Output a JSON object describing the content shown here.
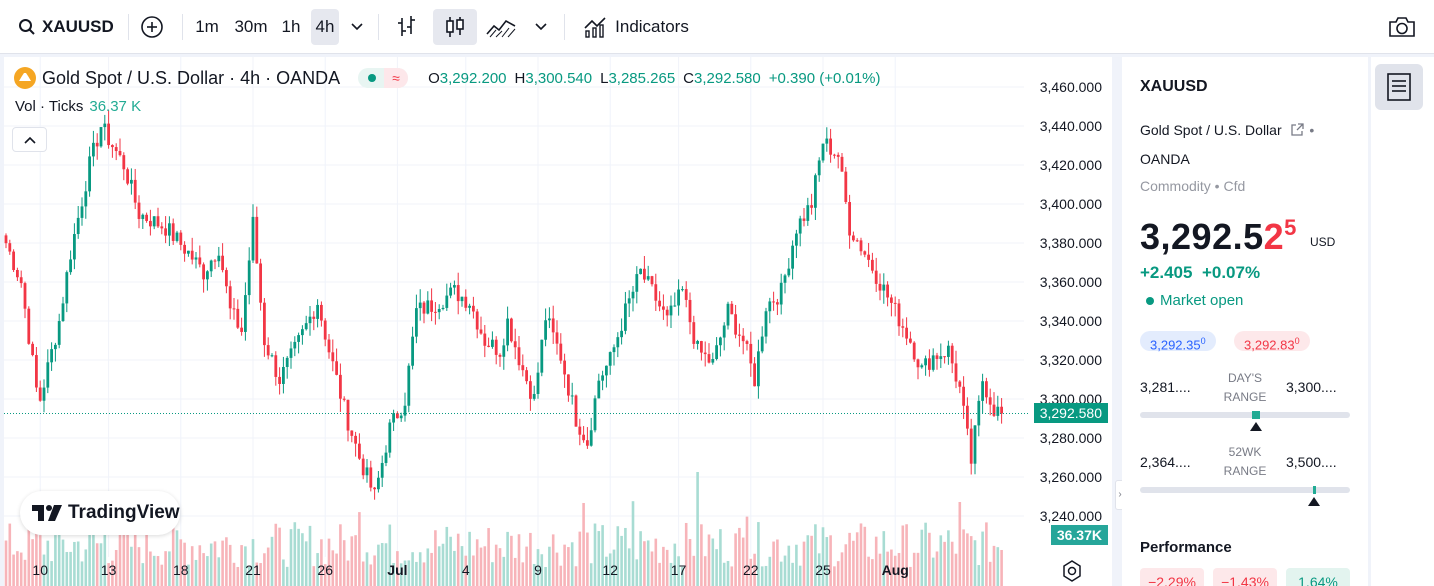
{
  "toolbar": {
    "symbol": "XAUUSD",
    "intervals": [
      "1m",
      "30m",
      "1h",
      "4h"
    ],
    "active_interval": "4h",
    "indicators_label": "Indicators"
  },
  "legend": {
    "title": "Gold Spot / U.S. Dollar · 4h · OANDA",
    "o_label": "O",
    "o": "3,292.200",
    "h_label": "H",
    "h": "3,300.540",
    "l_label": "L",
    "l": "3,285.265",
    "c_label": "C",
    "c": "3,292.580",
    "change": "+0.390 (+0.01%)",
    "vol_label": "Vol · Ticks",
    "vol_value": "36.37 K"
  },
  "price_axis": {
    "ticks": [
      "3,460.000",
      "3,440.000",
      "3,420.000",
      "3,400.000",
      "3,380.000",
      "3,360.000",
      "3,340.000",
      "3,320.000",
      "3,300.000",
      "3,280.000",
      "3,260.000",
      "3,240.000"
    ],
    "last_price_tag": "3,292.580",
    "volume_tag": "36.37K"
  },
  "time_axis": {
    "labels": [
      "10",
      "13",
      "18",
      "21",
      "26",
      "Jul",
      "4",
      "9",
      "12",
      "17",
      "22",
      "25",
      "Aug"
    ]
  },
  "watermark": "TradingView",
  "colors": {
    "up": "#089981",
    "down": "#f23645",
    "accent": "#2962ff"
  },
  "side": {
    "symbol": "XAUUSD",
    "name": "Gold Spot / U.S. Dollar",
    "exchange": "OANDA",
    "category": "Commodity",
    "type": "Cfd",
    "price_main": "3,292.5",
    "price_tail": "2",
    "price_sup": "5",
    "currency": "USD",
    "change_abs": "+2.405",
    "change_pct": "+0.07%",
    "market_status": "Market open",
    "bid": "3,292.35",
    "bid_sup": "0",
    "ask": "3,292.83",
    "ask_sup": "0",
    "day_low": "3,281....",
    "day_high": "3,300....",
    "day_label_1": "DAY'S",
    "day_label_2": "RANGE",
    "day_position_pct": 55,
    "wk_low": "2,364....",
    "wk_high": "3,500....",
    "wk_label_1": "52WK",
    "wk_label_2": "RANGE",
    "wk_position_pct": 83,
    "performance_title": "Performance",
    "performance": [
      "−2.29%",
      "−1.43%",
      "1.64%"
    ]
  },
  "chart_data": {
    "type": "candlestick",
    "title": "Gold Spot / U.S. Dollar · 4h · OANDA",
    "ylim": [
      3230,
      3470
    ],
    "y_ticks": [
      3460,
      3440,
      3420,
      3400,
      3380,
      3360,
      3340,
      3320,
      3300,
      3280,
      3260,
      3240
    ],
    "x_labels": [
      "10",
      "13",
      "18",
      "21",
      "26",
      "Jul",
      "4",
      "9",
      "12",
      "17",
      "22",
      "25",
      "Aug"
    ],
    "x_label_index": [
      9,
      27,
      46,
      65,
      84,
      103,
      121,
      140,
      159,
      177,
      196,
      215,
      234
    ],
    "last_price": 3292.58,
    "anchors": [
      [
        0,
        3380
      ],
      [
        4,
        3360
      ],
      [
        8,
        3305
      ],
      [
        9,
        3300
      ],
      [
        14,
        3340
      ],
      [
        17,
        3375
      ],
      [
        22,
        3420
      ],
      [
        25,
        3440
      ],
      [
        28,
        3430
      ],
      [
        31,
        3420
      ],
      [
        35,
        3395
      ],
      [
        42,
        3388
      ],
      [
        48,
        3375
      ],
      [
        52,
        3365
      ],
      [
        56,
        3378
      ],
      [
        59,
        3345
      ],
      [
        62,
        3335
      ],
      [
        65,
        3390
      ],
      [
        68,
        3330
      ],
      [
        72,
        3310
      ],
      [
        76,
        3325
      ],
      [
        82,
        3350
      ],
      [
        85,
        3325
      ],
      [
        89,
        3295
      ],
      [
        93,
        3270
      ],
      [
        97,
        3250
      ],
      [
        101,
        3285
      ],
      [
        105,
        3300
      ],
      [
        108,
        3345
      ],
      [
        112,
        3348
      ],
      [
        118,
        3355
      ],
      [
        122,
        3350
      ],
      [
        126,
        3330
      ],
      [
        130,
        3325
      ],
      [
        132,
        3340
      ],
      [
        136,
        3315
      ],
      [
        139,
        3300
      ],
      [
        142,
        3342
      ],
      [
        146,
        3322
      ],
      [
        150,
        3290
      ],
      [
        153,
        3278
      ],
      [
        156,
        3310
      ],
      [
        159,
        3320
      ],
      [
        163,
        3345
      ],
      [
        167,
        3365
      ],
      [
        170,
        3355
      ],
      [
        174,
        3340
      ],
      [
        178,
        3355
      ],
      [
        182,
        3325
      ],
      [
        186,
        3318
      ],
      [
        190,
        3345
      ],
      [
        194,
        3330
      ],
      [
        197,
        3310
      ],
      [
        200,
        3348
      ],
      [
        204,
        3355
      ],
      [
        208,
        3388
      ],
      [
        212,
        3400
      ],
      [
        215,
        3432
      ],
      [
        219,
        3425
      ],
      [
        222,
        3388
      ],
      [
        226,
        3375
      ],
      [
        230,
        3360
      ],
      [
        234,
        3345
      ],
      [
        238,
        3330
      ],
      [
        241,
        3315
      ],
      [
        244,
        3322
      ],
      [
        248,
        3325
      ],
      [
        251,
        3305
      ],
      [
        254,
        3268
      ],
      [
        257,
        3310
      ],
      [
        260,
        3295
      ],
      [
        262,
        3292.58
      ]
    ],
    "volume_ylim": [
      0,
      120
    ]
  }
}
